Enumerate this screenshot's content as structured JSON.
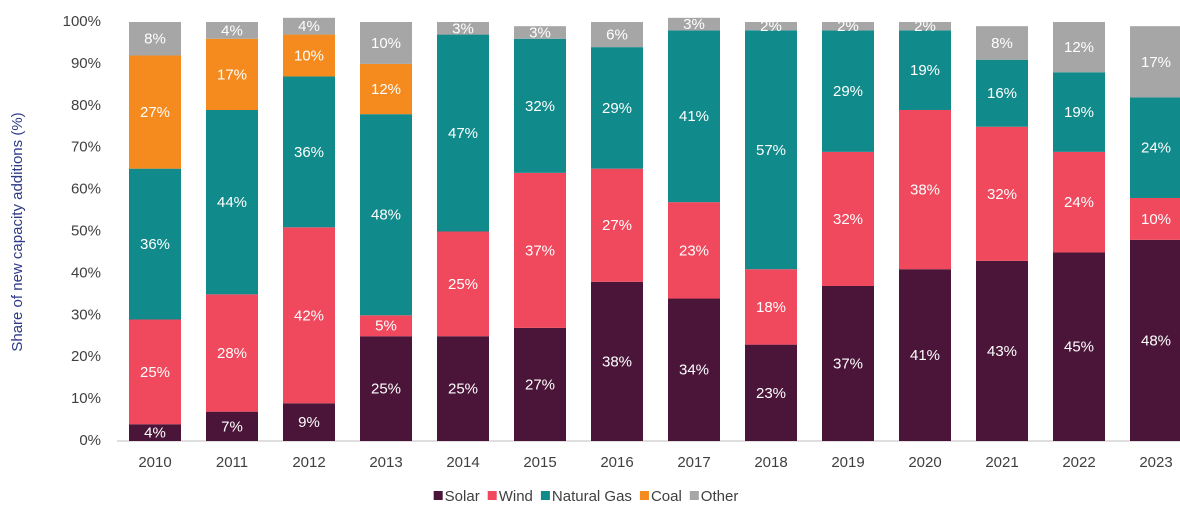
{
  "chart_data": {
    "type": "stacked_bar",
    "y_label": "Share of new capacity additions (%)",
    "categories": [
      "2010",
      "2011",
      "2012",
      "2013",
      "2014",
      "2015",
      "2016",
      "2017",
      "2018",
      "2019",
      "2020",
      "2021",
      "2022",
      "2023"
    ],
    "series": [
      {
        "name": "Solar",
        "color": "#4a1538",
        "values": [
          4,
          7,
          9,
          25,
          25,
          27,
          38,
          34,
          23,
          37,
          41,
          43,
          45,
          48
        ],
        "value_labels": [
          "4%",
          "7%",
          "9%",
          "25%",
          "25%",
          "27%",
          "38%",
          "34%",
          "23%",
          "37%",
          "41%",
          "43%",
          "45%",
          "48%"
        ]
      },
      {
        "name": "Wind",
        "color": "#f0485c",
        "values": [
          25,
          28,
          42,
          5,
          25,
          37,
          27,
          23,
          18,
          32,
          38,
          32,
          24,
          10
        ],
        "value_labels": [
          "25%",
          "28%",
          "42%",
          "5%",
          "25%",
          "37%",
          "27%",
          "23%",
          "18%",
          "32%",
          "38%",
          "32%",
          "24%",
          "10%"
        ]
      },
      {
        "name": "Natural Gas",
        "color": "#108a8a",
        "values": [
          36,
          44,
          36,
          48,
          47,
          32,
          29,
          41,
          57,
          29,
          19,
          16,
          19,
          24
        ],
        "value_labels": [
          "36%",
          "44%",
          "36%",
          "48%",
          "47%",
          "32%",
          "29%",
          "41%",
          "57%",
          "29%",
          "19%",
          "16%",
          "19%",
          "24%"
        ]
      },
      {
        "name": "Coal",
        "color": "#f58a1f",
        "values": [
          27,
          17,
          10,
          12,
          null,
          null,
          null,
          null,
          null,
          null,
          null,
          null,
          null,
          null
        ],
        "value_labels": [
          "27%",
          "17%",
          "10%",
          "12%",
          null,
          null,
          null,
          null,
          null,
          null,
          null,
          null,
          null,
          null
        ]
      },
      {
        "name": "Other",
        "color": "#a6a6a6",
        "values": [
          8,
          4,
          4,
          10,
          3,
          3,
          6,
          3,
          2,
          2,
          2,
          8,
          12,
          17
        ],
        "value_labels": [
          "8%",
          "4%",
          "4%",
          "10%",
          "3%",
          "3%",
          "6%",
          "3%",
          "2%",
          "2%",
          "2%",
          "8%",
          "12%",
          "17%"
        ]
      }
    ],
    "ylim": [
      0,
      100
    ],
    "yticks": [
      {
        "value": 0,
        "label": "0%"
      },
      {
        "value": 10,
        "label": "10%"
      },
      {
        "value": 20,
        "label": "20%"
      },
      {
        "value": 30,
        "label": "30%"
      },
      {
        "value": 40,
        "label": "40%"
      },
      {
        "value": 50,
        "label": "50%"
      },
      {
        "value": 60,
        "label": "60%"
      },
      {
        "value": 70,
        "label": "70%"
      },
      {
        "value": 80,
        "label": "80%"
      },
      {
        "value": 90,
        "label": "90%"
      },
      {
        "value": 100,
        "label": "100%"
      }
    ],
    "grid": false,
    "legend": "bottom"
  }
}
